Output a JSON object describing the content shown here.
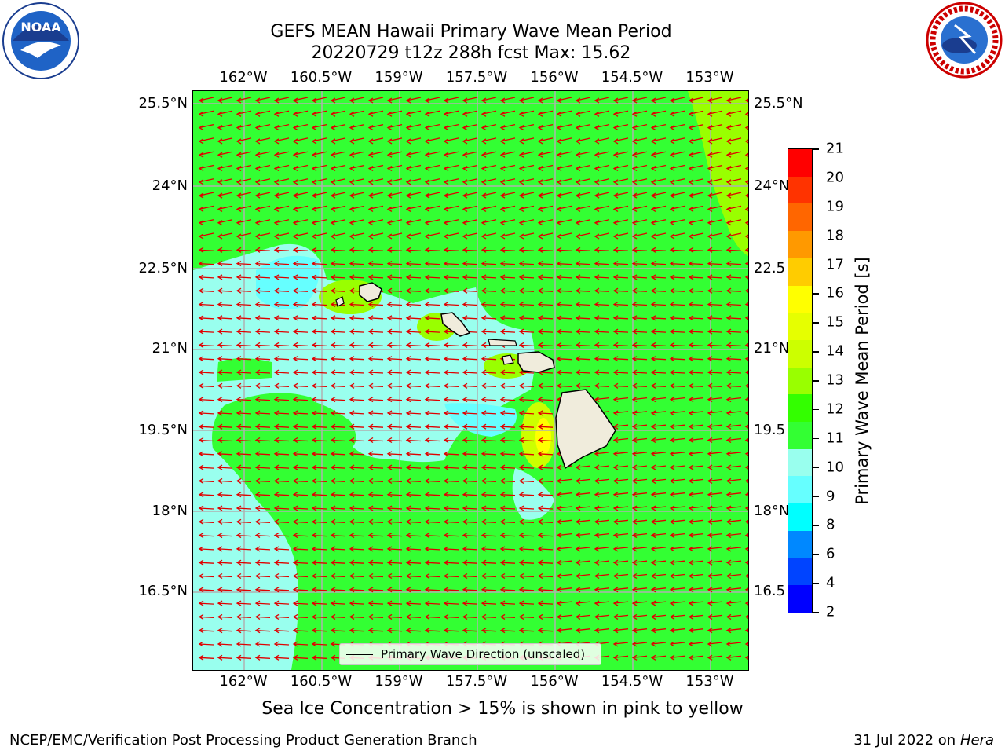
{
  "title": {
    "line1": "GEFS MEAN Hawaii Primary Wave Mean Period",
    "line2": "20220729 t12z 288h fcst   Max: 15.62"
  },
  "logos": {
    "left": "NOAA",
    "right": "NATIONAL WEATHER SERVICE"
  },
  "axes": {
    "lon_labels": [
      "162°W",
      "160.5°W",
      "159°W",
      "157.5°W",
      "156°W",
      "154.5°W",
      "153°W"
    ],
    "lat_labels": [
      "25.5°N",
      "24°N",
      "22.5°N",
      "21°N",
      "19.5°N",
      "18°N",
      "16.5°N"
    ],
    "right_lat_labels": [
      "25.5°N",
      "24°N",
      "22.5",
      "21°N",
      "19.5",
      "18°N",
      "16.5"
    ]
  },
  "legend": {
    "label": "Primary Wave Direction (unscaled)"
  },
  "colorbar": {
    "label": "Primary Wave Mean Period [s]",
    "ticks": [
      "21",
      "20",
      "19",
      "18",
      "17",
      "16",
      "15",
      "14",
      "13",
      "12",
      "11",
      "10",
      "9",
      "8",
      "6",
      "4",
      "2"
    ],
    "colors_top_to_bottom": [
      "#ff0000",
      "#ff3300",
      "#ff6600",
      "#ff9900",
      "#ffcc00",
      "#ffff00",
      "#e6ff00",
      "#ccff00",
      "#99ff00",
      "#33ff00",
      "#33ff33",
      "#99ffee",
      "#66ffff",
      "#00ffff",
      "#0088ff",
      "#0044ff",
      "#0000ff"
    ]
  },
  "map_colors": {
    "green": "#33ff33",
    "cyan": "#99ffee",
    "light_cyan": "#66ffff",
    "yellow_green": "#99ff00",
    "arrow": "#e00000",
    "land": "#f0ecdc"
  },
  "note": "Sea Ice Concentration > 15% is shown in pink to yellow",
  "footer": {
    "left": "NCEP/EMC/Verification Post Processing Product Generation Branch",
    "right_prefix": "31 Jul 2022 on",
    "right_italic": "Hera"
  }
}
